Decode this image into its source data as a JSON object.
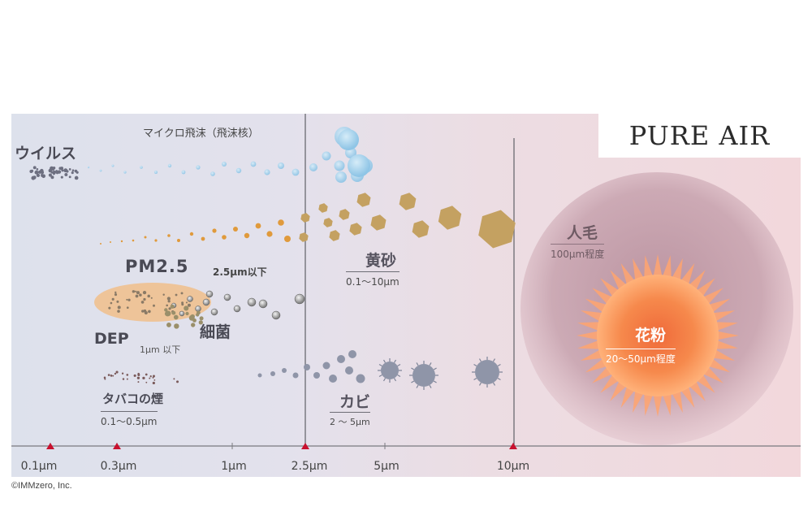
{
  "brand": "PURE AIR",
  "copyright": "©IMMzero, Inc.",
  "labels": {
    "virus": "ウイルス",
    "micro_droplet": "マイクロ飛沫（飛沫核）",
    "pm25": "PM2.5",
    "pm25_note": "2.5μm以下",
    "dep": "DEP",
    "dep_note": "1μm 以下",
    "bacteria": "細菌",
    "tobacco": "タバコの煙",
    "tobacco_range": "0.1〜0.5μm",
    "yellow_sand": "黄砂",
    "yellow_sand_range": "0.1〜10μm",
    "mold": "カビ",
    "mold_range": "2 〜 5μm",
    "hair": "人毛",
    "hair_range": "100μm程度",
    "pollen": "花粉",
    "pollen_range": "20〜50μm程度"
  },
  "axis": {
    "ticks": [
      {
        "label": "0.1μm",
        "marker": true
      },
      {
        "label": "0.3μm",
        "marker": true
      },
      {
        "label": "1μm",
        "marker": false
      },
      {
        "label": "2.5μm",
        "marker": true
      },
      {
        "label": "5μm",
        "marker": false
      },
      {
        "label": "10μm",
        "marker": true
      }
    ],
    "marker_color": "#c8102e"
  },
  "colors": {
    "droplet": "#8fc5e6",
    "sand": "#c4a161",
    "sand_small": "#e09a3c",
    "pm25_ellipse": "#f0c190",
    "bacteria": "#8e8e8e",
    "mold": "#8f95a8",
    "hair": "#c6a3ae",
    "pollen": "#f5874a"
  }
}
